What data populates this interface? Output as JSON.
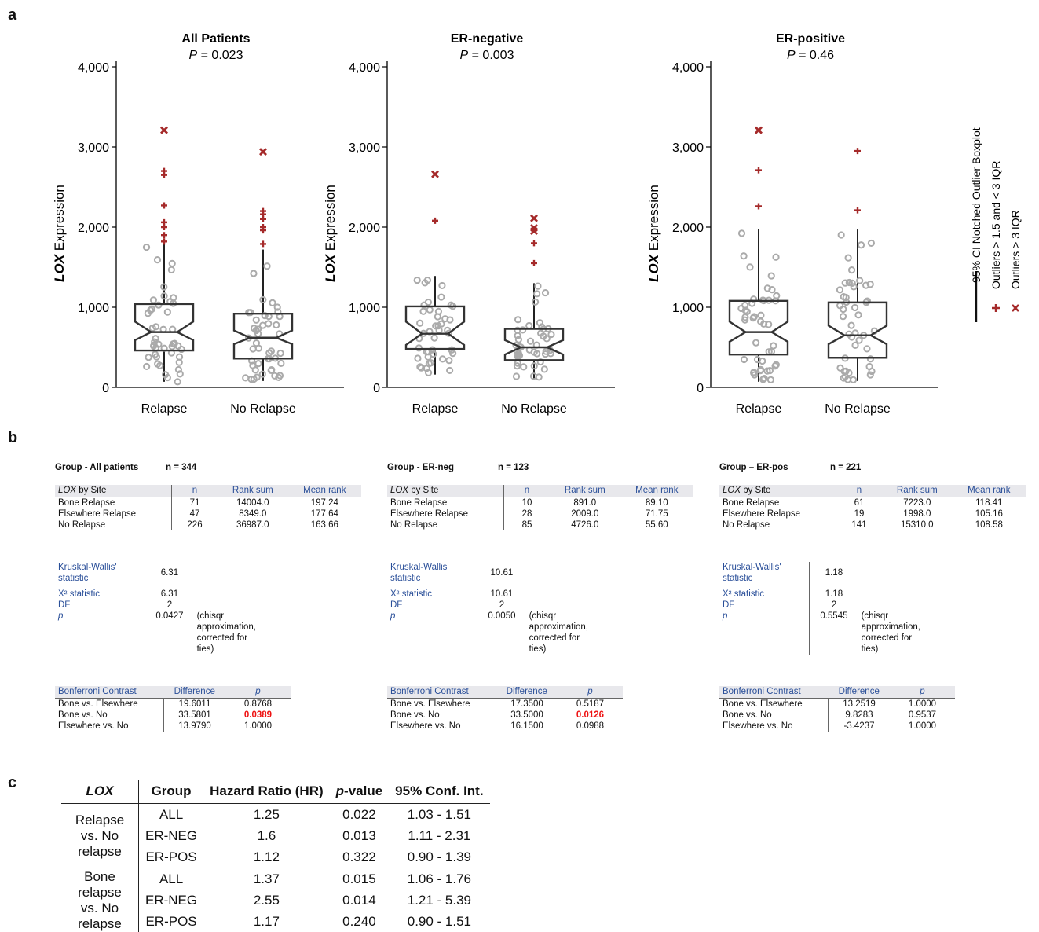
{
  "panel_labels": {
    "a": "a",
    "b": "b",
    "c": "c"
  },
  "chart_data": [
    {
      "type": "box",
      "title": "All Patients",
      "subtitle_p_label": "P",
      "subtitle_p_value": " = 0.023",
      "ylabel_gene": "LOX",
      "ylabel_rest": " Expression",
      "ylim": [
        0,
        4000
      ],
      "yticks": [
        0,
        1000,
        2000,
        3000,
        4000
      ],
      "ytick_labels": [
        "0",
        "1,000",
        "2,000",
        "3,000",
        "4,000"
      ],
      "categories": [
        "Relapse",
        "No Relapse"
      ],
      "boxes": [
        {
          "q1": 460,
          "median": 690,
          "q3": 1040,
          "notch_low": 590,
          "notch_high": 820,
          "whisker_low": 70,
          "whisker_high": 1800,
          "outliers": [
            1820,
            1900,
            2000,
            2060,
            2270,
            2650,
            2700
          ],
          "extreme": [
            3210
          ]
        },
        {
          "q1": 360,
          "median": 620,
          "q3": 920,
          "notch_low": 540,
          "notch_high": 710,
          "whisker_low": 80,
          "whisker_high": 1720,
          "outliers": [
            1790,
            1960,
            2000,
            2100,
            2160,
            2200
          ],
          "extreme": [
            2940
          ]
        }
      ]
    },
    {
      "type": "box",
      "title": "ER-negative",
      "subtitle_p_label": "P",
      "subtitle_p_value": " = 0.003",
      "ylabel_gene": "LOX",
      "ylabel_rest": " Expression",
      "ylim": [
        0,
        4000
      ],
      "yticks": [
        0,
        1000,
        2000,
        3000,
        4000
      ],
      "ytick_labels": [
        "0",
        "1,000",
        "2,000",
        "3,000",
        "4,000"
      ],
      "categories": [
        "Relapse",
        "No Relapse"
      ],
      "boxes": [
        {
          "q1": 480,
          "median": 670,
          "q3": 1010,
          "notch_low": 530,
          "notch_high": 820,
          "whisker_low": 160,
          "whisker_high": 1390,
          "outliers": [
            2080
          ],
          "extreme": [
            2660
          ]
        },
        {
          "q1": 340,
          "median": 500,
          "q3": 730,
          "notch_low": 410,
          "notch_high": 590,
          "whisker_low": 110,
          "whisker_high": 1300,
          "outliers": [
            1550,
            1800
          ],
          "extreme": [
            1950,
            1990,
            2110
          ]
        }
      ]
    },
    {
      "type": "box",
      "title": "ER-positive",
      "subtitle_p_label": "P",
      "subtitle_p_value": " = 0.46",
      "ylabel_gene": "LOX",
      "ylabel_rest": " Expression",
      "ylim": [
        0,
        4000
      ],
      "yticks": [
        0,
        1000,
        2000,
        3000,
        4000
      ],
      "ytick_labels": [
        "0",
        "1,000",
        "2,000",
        "3,000",
        "4,000"
      ],
      "categories": [
        "Relapse",
        "No Relapse"
      ],
      "boxes": [
        {
          "q1": 410,
          "median": 690,
          "q3": 1080,
          "notch_low": 570,
          "notch_high": 820,
          "whisker_low": 70,
          "whisker_high": 1980,
          "outliers": [
            2260,
            2710
          ],
          "extreme": [
            3210
          ]
        },
        {
          "q1": 370,
          "median": 650,
          "q3": 1060,
          "notch_low": 540,
          "notch_high": 770,
          "whisker_low": 80,
          "whisker_high": 1970,
          "outliers": [
            2210,
            2950
          ],
          "extreme": []
        }
      ]
    }
  ],
  "legend": {
    "items": [
      {
        "symbol": "line",
        "label": "95% CI Notched Outlier Boxplot"
      },
      {
        "symbol": "+",
        "label": "Outliers > 1.5 and < 3 IQR"
      },
      {
        "symbol": "x",
        "label": "Outliers > 3 IQR"
      }
    ],
    "outlier_color": "#a52a2a"
  },
  "stats": [
    {
      "group_label": "Group - All patients",
      "n_label": "n = 344",
      "site_header_gene": "LOX",
      "site_header_rest": " by Site",
      "headers": [
        "n",
        "Rank sum",
        "Mean rank"
      ],
      "rows": [
        [
          "Bone Relapse",
          "71",
          "14004.0",
          "197.24"
        ],
        [
          "Elsewhere Relapse",
          "47",
          "8349.0",
          "177.64"
        ],
        [
          "No Relapse",
          "226",
          "36987.0",
          "163.66"
        ]
      ],
      "kw_label": "Kruskal-Wallis' statistic",
      "kw_value": "6.31",
      "x2_label": "X² statistic",
      "x2_value": "6.31",
      "df_label": "DF",
      "df_value": "2",
      "p_label": "p",
      "p_value": "0.0427",
      "note": "(chisqr approximation, corrected for ties)",
      "bonf_headers": [
        "Bonferroni Contrast",
        "Difference",
        "p"
      ],
      "bonf_rows": [
        [
          "Bone vs. Elsewhere",
          "19.6011",
          "0.8768"
        ],
        [
          "Bone vs. No",
          "33.5801",
          "0.0389"
        ],
        [
          "Elsewhere vs. No",
          "13.9790",
          "1.0000"
        ]
      ],
      "highlight_row": 1
    },
    {
      "group_label": "Group - ER-neg",
      "n_label": "n = 123",
      "site_header_gene": "LOX",
      "site_header_rest": " by Site",
      "headers": [
        "n",
        "Rank sum",
        "Mean rank"
      ],
      "rows": [
        [
          "Bone Relapse",
          "10",
          "891.0",
          "89.10"
        ],
        [
          "Elsewhere Relapse",
          "28",
          "2009.0",
          "71.75"
        ],
        [
          "No Relapse",
          "85",
          "4726.0",
          "55.60"
        ]
      ],
      "kw_label": "Kruskal-Wallis' statistic",
      "kw_value": "10.61",
      "x2_label": "X² statistic",
      "x2_value": "10.61",
      "df_label": "DF",
      "df_value": "2",
      "p_label": "p",
      "p_value": "0.0050",
      "note": "(chisqr approximation, corrected for ties)",
      "bonf_headers": [
        "Bonferroni Contrast",
        "Difference",
        "p"
      ],
      "bonf_rows": [
        [
          "Bone vs. Elsewhere",
          "17.3500",
          "0.5187"
        ],
        [
          "Bone vs. No",
          "33.5000",
          "0.0126"
        ],
        [
          "Elsewhere vs. No",
          "16.1500",
          "0.0988"
        ]
      ],
      "highlight_row": 1
    },
    {
      "group_label": "Group – ER-pos",
      "n_label": "n = 221",
      "site_header_gene": "LOX",
      "site_header_rest": " by Site",
      "headers": [
        "n",
        "Rank sum",
        "Mean rank"
      ],
      "rows": [
        [
          "Bone Relapse",
          "61",
          "7223.0",
          "118.41"
        ],
        [
          "Elsewhere Relapse",
          "19",
          "1998.0",
          "105.16"
        ],
        [
          "No Relapse",
          "141",
          "15310.0",
          "108.58"
        ]
      ],
      "kw_label": "Kruskal-Wallis' statistic",
      "kw_value": "1.18",
      "x2_label": "X² statistic",
      "x2_value": "1.18",
      "df_label": "DF",
      "df_value": "2",
      "p_label": "p",
      "p_value": "0.5545",
      "note": "(chisqr approximation, corrected for ties)",
      "bonf_headers": [
        "Bonferroni Contrast",
        "Difference",
        "p"
      ],
      "bonf_rows": [
        [
          "Bone vs. Elsewhere",
          "13.2519",
          "1.0000"
        ],
        [
          "Bone vs. No",
          "9.8283",
          "0.9537"
        ],
        [
          "Elsewhere vs. No",
          "-3.4237",
          "1.0000"
        ]
      ],
      "highlight_row": -1
    }
  ],
  "hr_table": {
    "headers": [
      "LOX",
      "Group",
      "Hazard Ratio (HR)",
      "p-value",
      "95% Conf. Int."
    ],
    "blocks": [
      {
        "label": "Relapse vs. No relapse",
        "rows": [
          [
            "ALL",
            "1.25",
            "0.022",
            "1.03 - 1.51"
          ],
          [
            "ER-NEG",
            "1.6",
            "0.013",
            "1.11 - 2.31"
          ],
          [
            "ER-POS",
            "1.12",
            "0.322",
            "0.90 - 1.39"
          ]
        ]
      },
      {
        "label": "Bone relapse vs. No relapse",
        "rows": [
          [
            "ALL",
            "1.37",
            "0.015",
            "1.06 - 1.76"
          ],
          [
            "ER-NEG",
            "2.55",
            "0.014",
            "1.21 - 5.39"
          ],
          [
            "ER-POS",
            "1.17",
            "0.240",
            "0.90 - 1.51"
          ]
        ]
      }
    ]
  }
}
